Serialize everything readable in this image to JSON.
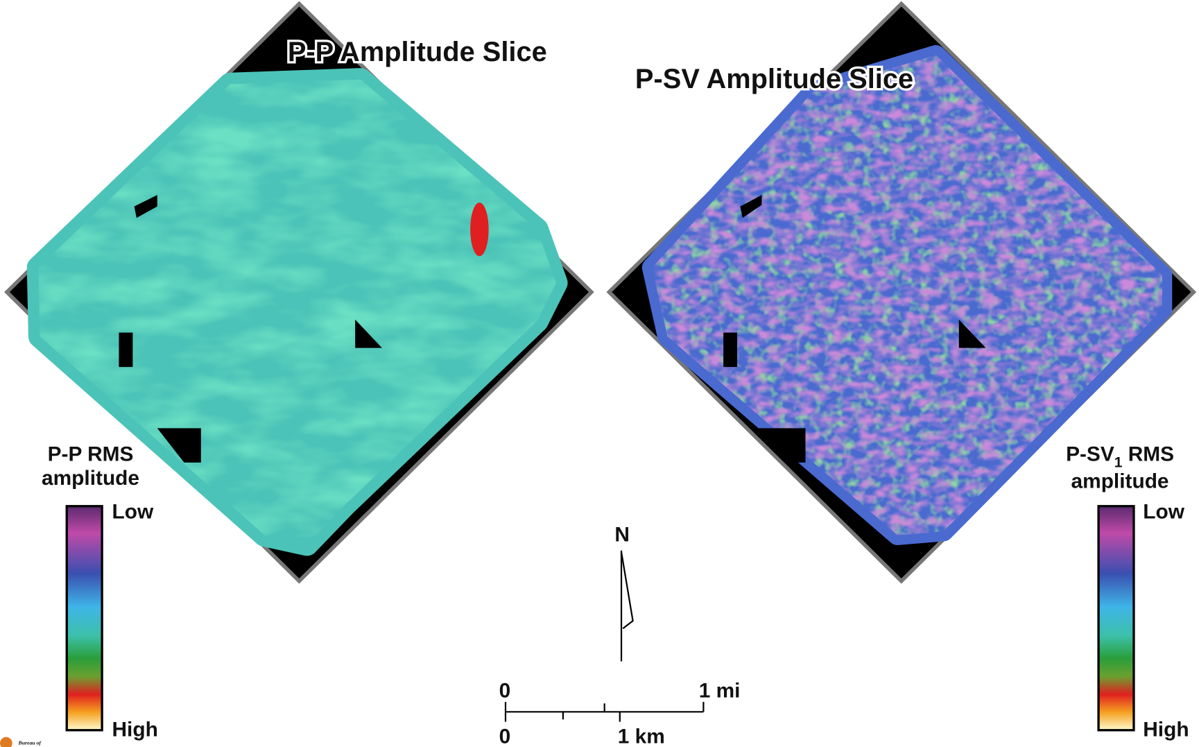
{
  "panels": [
    {
      "title": "P-P Amplitude Slice"
    },
    {
      "title": "P-SV Amplitude Slice"
    }
  ],
  "legends": [
    {
      "title_lines": [
        "P-P RMS",
        "amplitude"
      ],
      "low": "Low",
      "high": "High"
    },
    {
      "title_parts": [
        "P-SV",
        "1",
        " RMS"
      ],
      "title_line2": "amplitude",
      "low": "Low",
      "high": "High"
    }
  ],
  "north": "N",
  "scale_bar": {
    "mi_zero": "0",
    "mi_label": "1 mi",
    "km_zero": "0",
    "km_label": "1 km"
  },
  "logo": "Bureau of"
}
